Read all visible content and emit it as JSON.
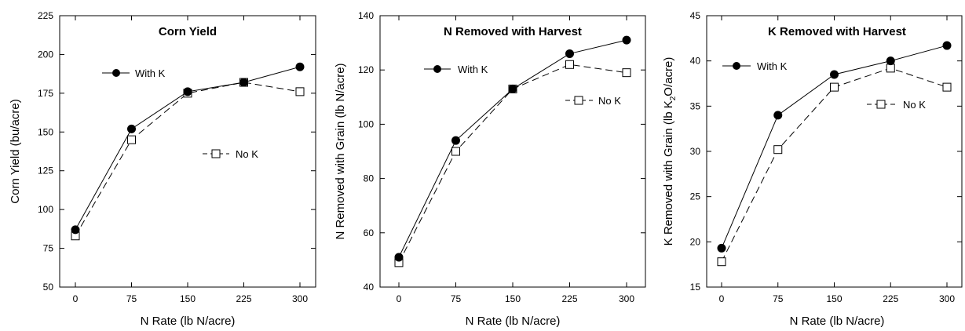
{
  "chart_data": [
    {
      "type": "line",
      "title": "Corn Yield",
      "xlabel": "N Rate (lb N/acre)",
      "ylabel": "Corn Yield (bu/acre)",
      "x": [
        0,
        75,
        150,
        225,
        300
      ],
      "xticks": [
        "0",
        "75",
        "150",
        "225",
        "300"
      ],
      "ylim": [
        50,
        225
      ],
      "yticks": [
        "50",
        "75",
        "100",
        "125",
        "150",
        "175",
        "200",
        "225"
      ],
      "series": [
        {
          "name": "With K",
          "values": [
            87,
            152,
            176,
            182,
            192
          ],
          "marker": "filled-circle",
          "line": "solid"
        },
        {
          "name": "No K",
          "values": [
            83,
            145,
            175,
            182,
            176
          ],
          "marker": "open-square",
          "line": "dashed"
        }
      ],
      "grid": false
    },
    {
      "type": "line",
      "title": "N Removed with Harvest",
      "xlabel": "N Rate (lb N/acre)",
      "ylabel": "N Removed with Grain (lb N/acre)",
      "x": [
        0,
        75,
        150,
        225,
        300
      ],
      "xticks": [
        "0",
        "75",
        "150",
        "225",
        "300"
      ],
      "ylim": [
        40,
        140
      ],
      "yticks": [
        "40",
        "60",
        "80",
        "100",
        "120",
        "140"
      ],
      "series": [
        {
          "name": "With K",
          "values": [
            51,
            94,
            113,
            126,
            131
          ],
          "marker": "filled-circle",
          "line": "solid"
        },
        {
          "name": "No K",
          "values": [
            49,
            90,
            113,
            122,
            119
          ],
          "marker": "open-square",
          "line": "dashed"
        }
      ],
      "grid": false
    },
    {
      "type": "line",
      "title": "K Removed with Harvest",
      "xlabel": "N Rate (lb N/acre)",
      "ylabel_parts": [
        "K Removed with Grain (lb K",
        "2",
        "O/acre)"
      ],
      "x": [
        0,
        75,
        150,
        225,
        300
      ],
      "xticks": [
        "0",
        "75",
        "150",
        "225",
        "300"
      ],
      "ylim": [
        15,
        45
      ],
      "yticks": [
        "15",
        "20",
        "25",
        "30",
        "35",
        "40",
        "45"
      ],
      "series": [
        {
          "name": "With K",
          "values": [
            19.3,
            34.0,
            38.5,
            40.0,
            41.7
          ],
          "marker": "filled-circle",
          "line": "solid"
        },
        {
          "name": "No K",
          "values": [
            17.8,
            30.2,
            37.1,
            39.2,
            37.1
          ],
          "marker": "open-square",
          "line": "dashed"
        }
      ],
      "grid": false
    }
  ]
}
